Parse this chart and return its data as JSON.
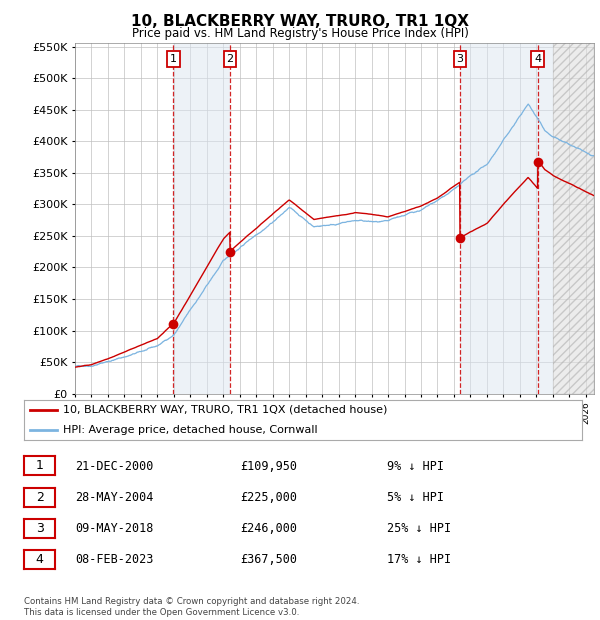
{
  "title": "10, BLACKBERRY WAY, TRURO, TR1 1QX",
  "subtitle": "Price paid vs. HM Land Registry's House Price Index (HPI)",
  "ytick_values": [
    0,
    50000,
    100000,
    150000,
    200000,
    250000,
    300000,
    350000,
    400000,
    450000,
    500000,
    550000
  ],
  "xmin": 1995,
  "xmax": 2026,
  "ymin": 0,
  "ymax": 550000,
  "sale_dates": [
    2000.97,
    2004.41,
    2018.36,
    2023.09
  ],
  "sale_prices": [
    109950,
    225000,
    246000,
    367500
  ],
  "sale_labels": [
    "1",
    "2",
    "3",
    "4"
  ],
  "hpi_color": "#7cb4e0",
  "sale_color": "#cc0000",
  "vline_color": "#cc0000",
  "grid_color": "#c0c0c0",
  "shade_color": "#dce6f1",
  "plot_bg": "#ffffff",
  "hatch_xmin": 2024.0,
  "hatch_xmax": 2026.5,
  "legend_entries": [
    "10, BLACKBERRY WAY, TRURO, TR1 1QX (detached house)",
    "HPI: Average price, detached house, Cornwall"
  ],
  "table_rows": [
    [
      "1",
      "21-DEC-2000",
      "£109,950",
      "9% ↓ HPI"
    ],
    [
      "2",
      "28-MAY-2004",
      "£225,000",
      "5% ↓ HPI"
    ],
    [
      "3",
      "09-MAY-2018",
      "£246,000",
      "25% ↓ HPI"
    ],
    [
      "4",
      "08-FEB-2023",
      "£367,500",
      "17% ↓ HPI"
    ]
  ],
  "footnote": "Contains HM Land Registry data © Crown copyright and database right 2024.\nThis data is licensed under the Open Government Licence v3.0."
}
